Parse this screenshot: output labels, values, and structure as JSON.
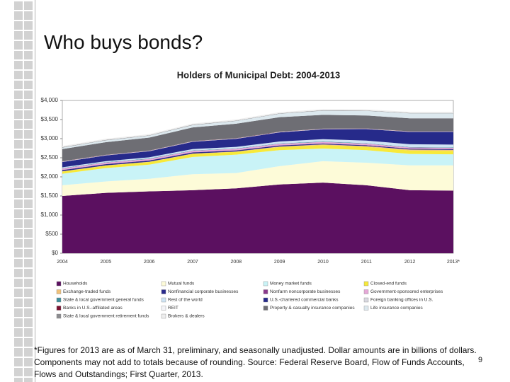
{
  "slide_title": "Who buys bonds?",
  "chart_data": {
    "type": "stacked-area",
    "title": "Holders of Municipal Debt: 2004-2013",
    "categories": [
      "2004",
      "2005",
      "2006",
      "2007",
      "2008",
      "2009",
      "2010",
      "2011",
      "2012",
      "2013*"
    ],
    "ylim": [
      0,
      4000
    ],
    "yticks": [
      {
        "value": 0,
        "label": "$0"
      },
      {
        "value": 500,
        "label": "$500"
      },
      {
        "value": 1000,
        "label": "$1,000"
      },
      {
        "value": 1500,
        "label": "$1,500"
      },
      {
        "value": 2000,
        "label": "$2,000"
      },
      {
        "value": 2500,
        "label": "$2,500"
      },
      {
        "value": 3000,
        "label": "$3,000"
      },
      {
        "value": 3500,
        "label": "$3,500"
      },
      {
        "value": 4000,
        "label": "$4,000"
      }
    ],
    "series": [
      {
        "name": "Households",
        "color": "#5b1060",
        "values": [
          1500,
          1580,
          1620,
          1650,
          1700,
          1800,
          1850,
          1780,
          1650,
          1640
        ]
      },
      {
        "name": "Mutual funds",
        "color": "#fdfbd8",
        "values": [
          280,
          300,
          330,
          420,
          400,
          480,
          560,
          590,
          650,
          660
        ]
      },
      {
        "name": "Money market funds",
        "color": "#c9f3f7",
        "values": [
          300,
          350,
          370,
          450,
          480,
          420,
          330,
          330,
          300,
          290
        ]
      },
      {
        "name": "Closed-end funds",
        "color": "#f7e93a",
        "values": [
          60,
          65,
          70,
          80,
          75,
          80,
          90,
          85,
          90,
          90
        ]
      },
      {
        "name": "Exchange-traded funds",
        "color": "#f1c27a",
        "values": [
          5,
          5,
          6,
          8,
          10,
          15,
          20,
          20,
          25,
          25
        ]
      },
      {
        "name": "Nonfinancial corporate businesses",
        "color": "#2a2a8c",
        "values": [
          30,
          30,
          30,
          30,
          25,
          25,
          20,
          20,
          20,
          20
        ]
      },
      {
        "name": "Nonfarm noncorporate businesses",
        "color": "#8a3a8c",
        "values": [
          5,
          5,
          5,
          5,
          5,
          5,
          5,
          5,
          5,
          5
        ]
      },
      {
        "name": "Government-sponsored enterprises",
        "color": "#e6a8d8",
        "values": [
          40,
          40,
          40,
          40,
          40,
          40,
          40,
          40,
          30,
          30
        ]
      },
      {
        "name": "State & local government general funds",
        "color": "#3e8f9c",
        "values": [
          10,
          10,
          10,
          10,
          10,
          10,
          10,
          10,
          10,
          10
        ]
      },
      {
        "name": "Rest of the world",
        "color": "#cfe4f4",
        "values": [
          20,
          25,
          30,
          35,
          40,
          50,
          60,
          70,
          75,
          75
        ]
      },
      {
        "name": "U.S.-chartered commercial banks",
        "color": "#262a8a",
        "values": [
          140,
          150,
          160,
          190,
          210,
          240,
          260,
          300,
          320,
          330
        ]
      },
      {
        "name": "Foreign banking offices in U.S.",
        "color": "#d8d8e0",
        "values": [
          10,
          10,
          10,
          10,
          10,
          10,
          10,
          10,
          10,
          10
        ]
      },
      {
        "name": "Banks in U.S.-affiliated areas",
        "color": "#7a1030",
        "values": [
          5,
          5,
          5,
          5,
          5,
          5,
          5,
          5,
          5,
          5
        ]
      },
      {
        "name": "REIT",
        "color": "#f4f4f8",
        "values": [
          2,
          2,
          2,
          2,
          2,
          2,
          2,
          2,
          2,
          2
        ]
      },
      {
        "name": "Property & casualty insurance companies",
        "color": "#6e6e74",
        "values": [
          320,
          330,
          340,
          360,
          380,
          380,
          360,
          340,
          340,
          340
        ]
      },
      {
        "name": "Life insurance companies",
        "color": "#dce8ee",
        "values": [
          40,
          50,
          50,
          60,
          70,
          90,
          110,
          120,
          130,
          130
        ]
      },
      {
        "name": "State & local government retirement funds",
        "color": "#8c8c90",
        "values": [
          10,
          10,
          10,
          10,
          10,
          10,
          10,
          10,
          10,
          10
        ]
      },
      {
        "name": "Brokers & dealers",
        "color": "#eeeeee",
        "values": [
          30,
          30,
          30,
          30,
          30,
          30,
          30,
          30,
          30,
          30
        ]
      }
    ]
  },
  "footnote": "*Figures for 2013 are as of March 31, preliminary, and seasonally unadjusted.  Dollar amounts are in billions of dollars.  Components may not add to totals because of rounding.  Source: Federal Reserve Board, Flow of Funds Accounts, Flows and Outstandings; First Quarter, 2013.",
  "page_number": "9"
}
